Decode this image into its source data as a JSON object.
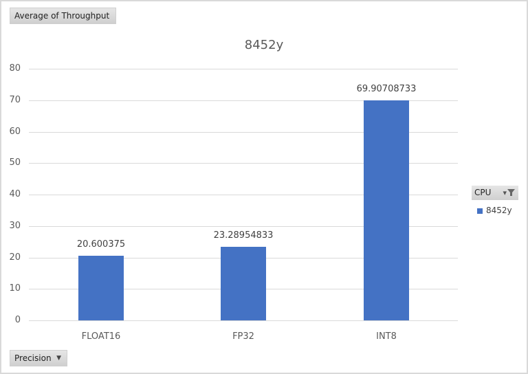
{
  "pivot": {
    "value_field": "Average of Throughput",
    "axis_field": "Precision",
    "legend_field": "CPU"
  },
  "colors": {
    "series": "#4472c4",
    "grid": "#d9d9d9",
    "text": "#595959"
  },
  "chart_data": {
    "type": "bar",
    "title": "8452y",
    "categories": [
      "FLOAT16",
      "FP32",
      "INT8"
    ],
    "series": [
      {
        "name": "8452y",
        "values": [
          20.600375,
          23.28954833,
          69.90708733
        ]
      }
    ],
    "data_labels": [
      "20.600375",
      "23.28954833",
      "69.90708733"
    ],
    "xlabel": "",
    "ylabel": "",
    "ylim": [
      0,
      80
    ],
    "yticks": [
      0,
      10,
      20,
      30,
      40,
      50,
      60,
      70,
      80
    ],
    "grid": true,
    "legend_position": "right",
    "legend_title": "CPU"
  }
}
